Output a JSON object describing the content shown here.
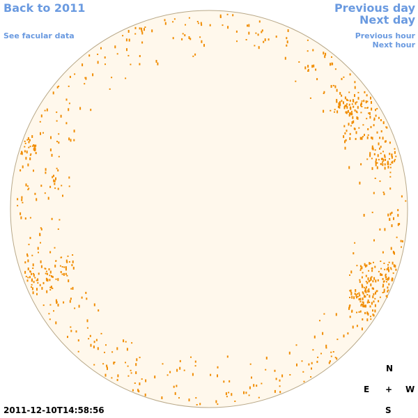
{
  "nav": {
    "back_year": "Back to 2011",
    "facular_data": "See facular data",
    "previous_day": "Previous day",
    "next_day": "Next day",
    "previous_hour": "Previous hour",
    "next_hour": "Next hour"
  },
  "compass": {
    "north": "N",
    "east": "E",
    "center": "+",
    "west": "W",
    "south": "S"
  },
  "timestamp": "2011-12-10T14:58:56"
}
